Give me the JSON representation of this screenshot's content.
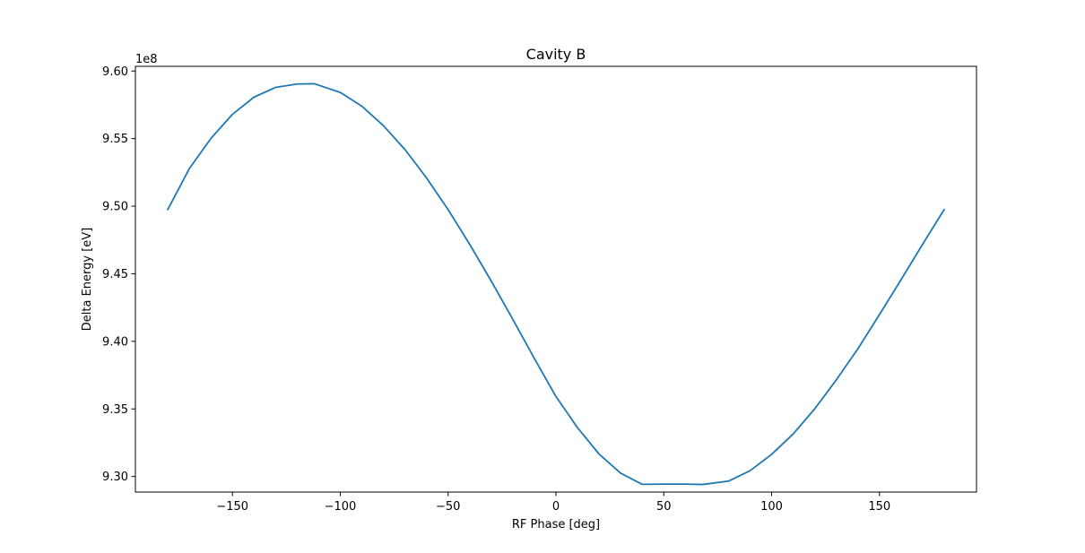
{
  "chart_data": {
    "type": "line",
    "title": "Cavity B",
    "xlabel": "RF Phase [deg]",
    "ylabel": "Delta Energy [eV]",
    "y_offset_label": "1e8",
    "y_scale": 100000000,
    "xlim": [
      -195.0,
      195.0
    ],
    "ylim": [
      9.2885,
      9.6035
    ],
    "x_ticks": [
      -150,
      -100,
      -50,
      0,
      50,
      100,
      150
    ],
    "x_tick_labels": [
      "−150",
      "−100",
      "−50",
      "0",
      "50",
      "100",
      "150"
    ],
    "y_ticks": [
      9.3,
      9.35,
      9.4,
      9.45,
      9.5,
      9.55,
      9.6
    ],
    "y_tick_labels": [
      "9.30",
      "9.35",
      "9.40",
      "9.45",
      "9.50",
      "9.55",
      "9.60"
    ],
    "grid": false,
    "legend": "none",
    "series": [
      {
        "color": "#1f77b4",
        "x": [
          -180,
          -170,
          -160,
          -150,
          -140,
          -130,
          -120,
          -112,
          -100,
          -90,
          -80,
          -70,
          -60,
          -50,
          -40,
          -30,
          -20,
          -10,
          0,
          10,
          20,
          30,
          40,
          50,
          60,
          68,
          80,
          90,
          100,
          110,
          120,
          130,
          140,
          150,
          160,
          170,
          180
        ],
        "y": [
          9.4975,
          9.5278,
          9.5501,
          9.568,
          9.5807,
          9.5879,
          9.5904,
          9.5906,
          9.5842,
          9.574,
          9.5596,
          9.5419,
          9.5209,
          9.4975,
          9.4718,
          9.4446,
          9.4163,
          9.3873,
          9.3592,
          9.3361,
          9.3166,
          9.3025,
          9.2942,
          9.2944,
          9.2944,
          9.2941,
          9.2966,
          9.3043,
          9.3164,
          9.3315,
          9.3501,
          9.3715,
          9.3945,
          9.4198,
          9.4456,
          9.4718,
          9.4975
        ]
      }
    ]
  }
}
